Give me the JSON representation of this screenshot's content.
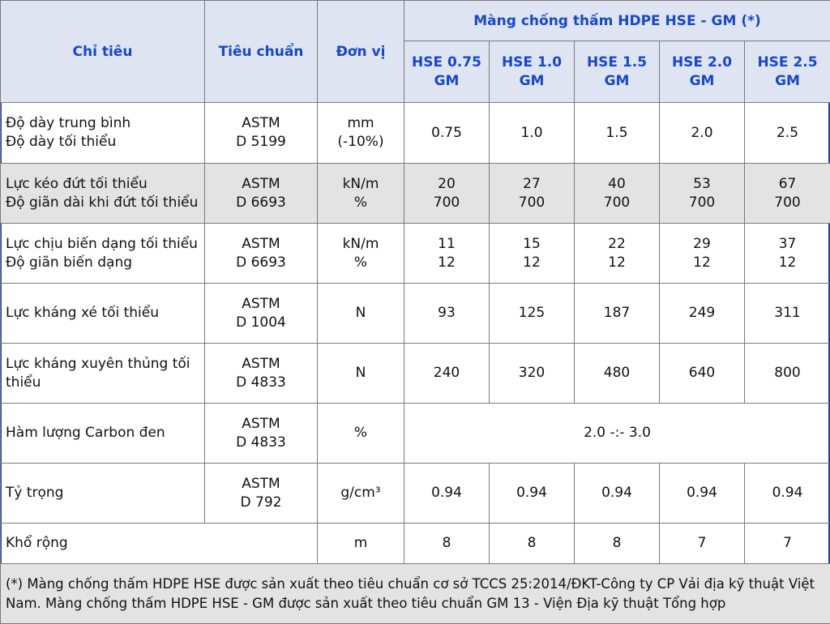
{
  "header": {
    "criteria": "Chỉ tiêu",
    "standard": "Tiêu chuẩn",
    "unit": "Đơn vị",
    "group": "Màng chống thấm HDPE HSE - GM (*)",
    "products": [
      [
        "HSE 0.75",
        "GM"
      ],
      [
        "HSE 1.0",
        "GM"
      ],
      [
        "HSE 1.5",
        "GM"
      ],
      [
        "HSE 2.0",
        "GM"
      ],
      [
        "HSE 2.5",
        "GM"
      ]
    ]
  },
  "rows": [
    {
      "criteria": [
        "Độ dày trung bình",
        "Độ dày tối thiểu"
      ],
      "standard": [
        "ASTM",
        "D 5199"
      ],
      "unit": [
        "mm",
        "(-10%)"
      ],
      "values": [
        [
          "0.75"
        ],
        [
          "1.0"
        ],
        [
          "1.5"
        ],
        [
          "2.0"
        ],
        [
          "2.5"
        ]
      ]
    },
    {
      "criteria": [
        "Lực kéo đứt tối thiểu",
        "Độ giãn dài khi đứt tối thiểu"
      ],
      "standard": [
        "ASTM",
        "D 6693"
      ],
      "unit": [
        "kN/m",
        "%"
      ],
      "values": [
        [
          "20",
          "700"
        ],
        [
          "27",
          "700"
        ],
        [
          "40",
          "700"
        ],
        [
          "53",
          "700"
        ],
        [
          "67",
          "700"
        ]
      ]
    },
    {
      "criteria": [
        "Lực chịu biến dạng tối thiểu",
        "Độ giãn biến dạng"
      ],
      "standard": [
        "ASTM",
        "D 6693"
      ],
      "unit": [
        "kN/m",
        "%"
      ],
      "values": [
        [
          "11",
          "12"
        ],
        [
          "15",
          "12"
        ],
        [
          "22",
          "12"
        ],
        [
          "29",
          "12"
        ],
        [
          "37",
          "12"
        ]
      ]
    },
    {
      "criteria": [
        "Lực kháng xé tối thiểu"
      ],
      "standard": [
        "ASTM",
        "D 1004"
      ],
      "unit": [
        "N"
      ],
      "values": [
        [
          "93"
        ],
        [
          "125"
        ],
        [
          "187"
        ],
        [
          "249"
        ],
        [
          "311"
        ]
      ]
    },
    {
      "criteria": [
        "Lực kháng xuyên thủng tối",
        "thiểu"
      ],
      "standard": [
        "ASTM",
        "D 4833"
      ],
      "unit": [
        "N"
      ],
      "values": [
        [
          "240"
        ],
        [
          "320"
        ],
        [
          "480"
        ],
        [
          "640"
        ],
        [
          "800"
        ]
      ]
    },
    {
      "criteria": [
        "Hàm lượng Carbon đen"
      ],
      "standard": [
        "ASTM",
        "D 4833"
      ],
      "unit": [
        "%"
      ],
      "merged_value": "2.0 -:- 3.0"
    },
    {
      "criteria": [
        "Tỷ trọng"
      ],
      "standard": [
        "ASTM",
        "D 792"
      ],
      "unit": [
        "g/cm³"
      ],
      "values": [
        [
          "0.94"
        ],
        [
          "0.94"
        ],
        [
          "0.94"
        ],
        [
          "0.94"
        ],
        [
          "0.94"
        ]
      ]
    },
    {
      "criteria": [
        "Khổ rộng"
      ],
      "standard": [],
      "unit": [
        "m"
      ],
      "values": [
        [
          "8"
        ],
        [
          "8"
        ],
        [
          "8"
        ],
        [
          "7"
        ],
        [
          "7"
        ]
      ]
    }
  ],
  "note": "(*) Màng chống thấm HDPE HSE được sản xuất theo tiêu chuẩn cơ sở TCCS 25:2014/ĐKT-Công ty CP Vải địa kỹ thuật Việt Nam. Màng chống thấm HDPE HSE - GM được sản xuất theo tiêu chuẩn GM 13 - Viện Địa kỹ thuật Tổng hợp"
}
